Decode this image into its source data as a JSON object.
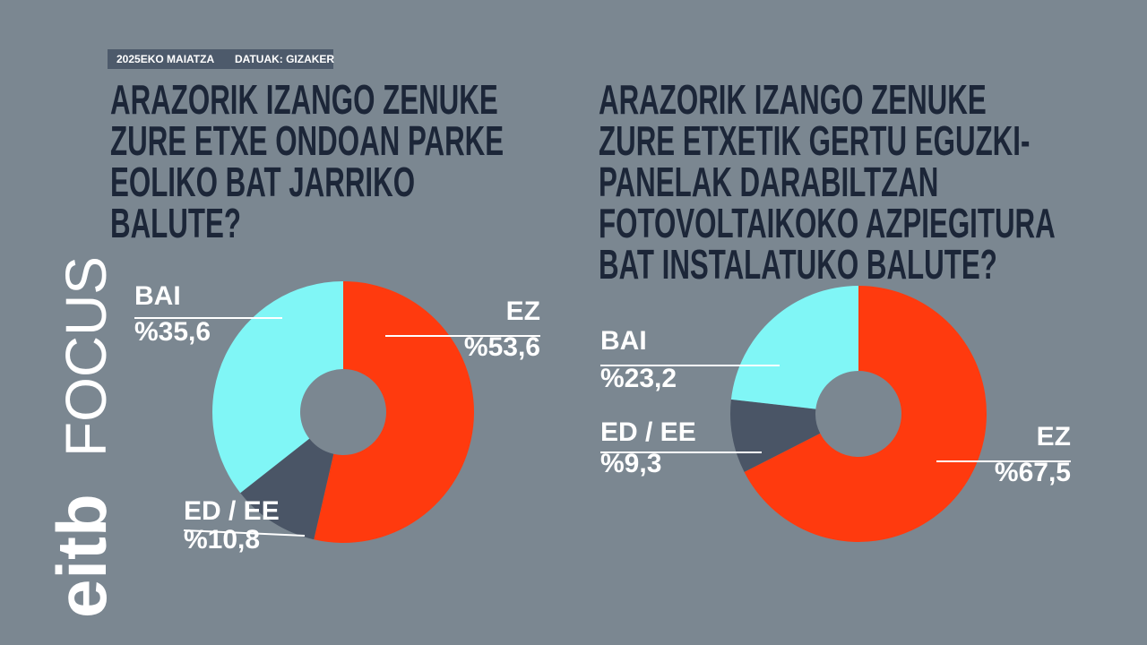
{
  "header": {
    "date": "2025EKO MAIATZA",
    "source": "DATUAK: GIZAKER"
  },
  "logo": {
    "brand": "eitb",
    "program": "FOCUS"
  },
  "chart_data": [
    {
      "type": "pie",
      "title": "ARAZORIK IZANGO ZENUKE ZURE ETXE ONDOAN PARKE EOLIKO BAT JARRIKO BALUTE?",
      "categories": [
        "EZ",
        "ED / EE",
        "BAI"
      ],
      "values": [
        53.6,
        10.8,
        35.6
      ],
      "value_labels": [
        "%53,6",
        "%10,8",
        "%35,6"
      ],
      "colors": [
        "#ff3a0e",
        "#4a5566",
        "#80f6f6"
      ]
    },
    {
      "type": "pie",
      "title": "ARAZORIK IZANGO ZENUKE ZURE ETXETIK GERTU EGUZKI-PANELAK DARABILTZAN FOTOVOLTAIKOKO AZPIEGITURA BAT INSTALATUKO BALUTE?",
      "categories": [
        "EZ",
        "ED / EE",
        "BAI"
      ],
      "values": [
        67.5,
        9.3,
        23.2
      ],
      "value_labels": [
        "%67,5",
        "%9,3",
        "%23,2"
      ],
      "colors": [
        "#ff3a0e",
        "#4a5566",
        "#80f6f6"
      ]
    }
  ]
}
